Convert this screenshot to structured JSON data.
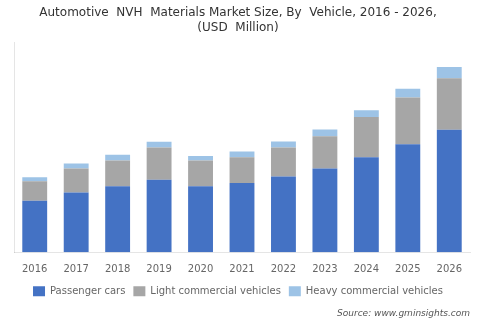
{
  "chart_data": {
    "type": "bar",
    "title": "Automotive  NVH  Materials Market Size, By  Vehicle, 2016 - 2026,\n(USD  Million)",
    "categories": [
      "2016",
      "2017",
      "2018",
      "2019",
      "2020",
      "2021",
      "2022",
      "2023",
      "2024",
      "2025",
      "2026"
    ],
    "series": [
      {
        "name": "Passenger cars",
        "color": "#4472c4",
        "values": [
          3200,
          3700,
          4100,
          4500,
          4100,
          4300,
          4700,
          5200,
          5900,
          6700,
          7600
        ]
      },
      {
        "name": "Light commercial vehicles",
        "color": "#a6a6a6",
        "values": [
          1200,
          1500,
          1600,
          2000,
          1600,
          1600,
          1800,
          2000,
          2500,
          2900,
          3200
        ]
      },
      {
        "name": "Heavy commercial vehicles",
        "color": "#9dc3e6",
        "values": [
          250,
          300,
          350,
          350,
          280,
          350,
          370,
          420,
          420,
          550,
          700
        ]
      }
    ],
    "stacked": true,
    "ylim": [
      0,
      13000
    ],
    "tick_labels": "x",
    "grid": false,
    "legend": "bottom",
    "annotation": "Source: www.gminsights.com"
  }
}
